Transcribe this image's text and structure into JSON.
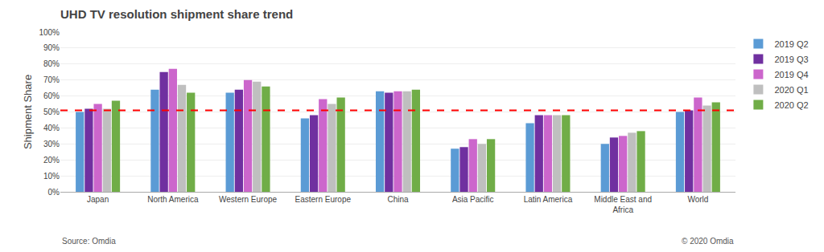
{
  "chart_data": {
    "type": "bar",
    "title": "UHD TV resolution shipment share trend",
    "ylabel": "Shipment Share",
    "annotations": [
      "Source: Omdia",
      "© 2020 Omdia"
    ],
    "categories": [
      "Japan",
      "North America",
      "Western Europe",
      "Eastern Europe",
      "China",
      "Asia Pacific",
      "Latin America",
      "Middle East and\nAfrica",
      "World"
    ],
    "series": [
      {
        "name": "2019 Q2",
        "color": "#5B9BD5",
        "values": [
          50,
          64,
          62,
          46,
          63,
          27,
          43,
          30,
          50
        ]
      },
      {
        "name": "2019 Q3",
        "color": "#7030A0",
        "values": [
          52,
          75,
          64,
          48,
          62,
          28,
          48,
          34,
          51
        ]
      },
      {
        "name": "2019 Q4",
        "color": "#CC66CC",
        "values": [
          55,
          77,
          70,
          58,
          63,
          33,
          48,
          35,
          59
        ]
      },
      {
        "name": "2020 Q1",
        "color": "#BFBFBF",
        "values": [
          52,
          67,
          69,
          55,
          63,
          30,
          48,
          37,
          54
        ]
      },
      {
        "name": "2020 Q2",
        "color": "#70AD47",
        "values": [
          57,
          62,
          66,
          59,
          64,
          33,
          48,
          38,
          56
        ]
      }
    ],
    "reference_line": {
      "value": 51,
      "color": "#FF0000",
      "line_style": "dashed"
    },
    "ylim": [
      0,
      100
    ],
    "yticks": [
      {
        "value": 0,
        "label": "0%"
      },
      {
        "value": 10,
        "label": "10%"
      },
      {
        "value": 20,
        "label": "20%"
      },
      {
        "value": 30,
        "label": "30%"
      },
      {
        "value": 40,
        "label": "40%"
      },
      {
        "value": 50,
        "label": "50%"
      },
      {
        "value": 60,
        "label": "60%"
      },
      {
        "value": 70,
        "label": "70%"
      },
      {
        "value": 80,
        "label": "80%"
      },
      {
        "value": 90,
        "label": "90%"
      },
      {
        "value": 100,
        "label": "100%"
      }
    ],
    "grid": true,
    "legend": "right"
  }
}
